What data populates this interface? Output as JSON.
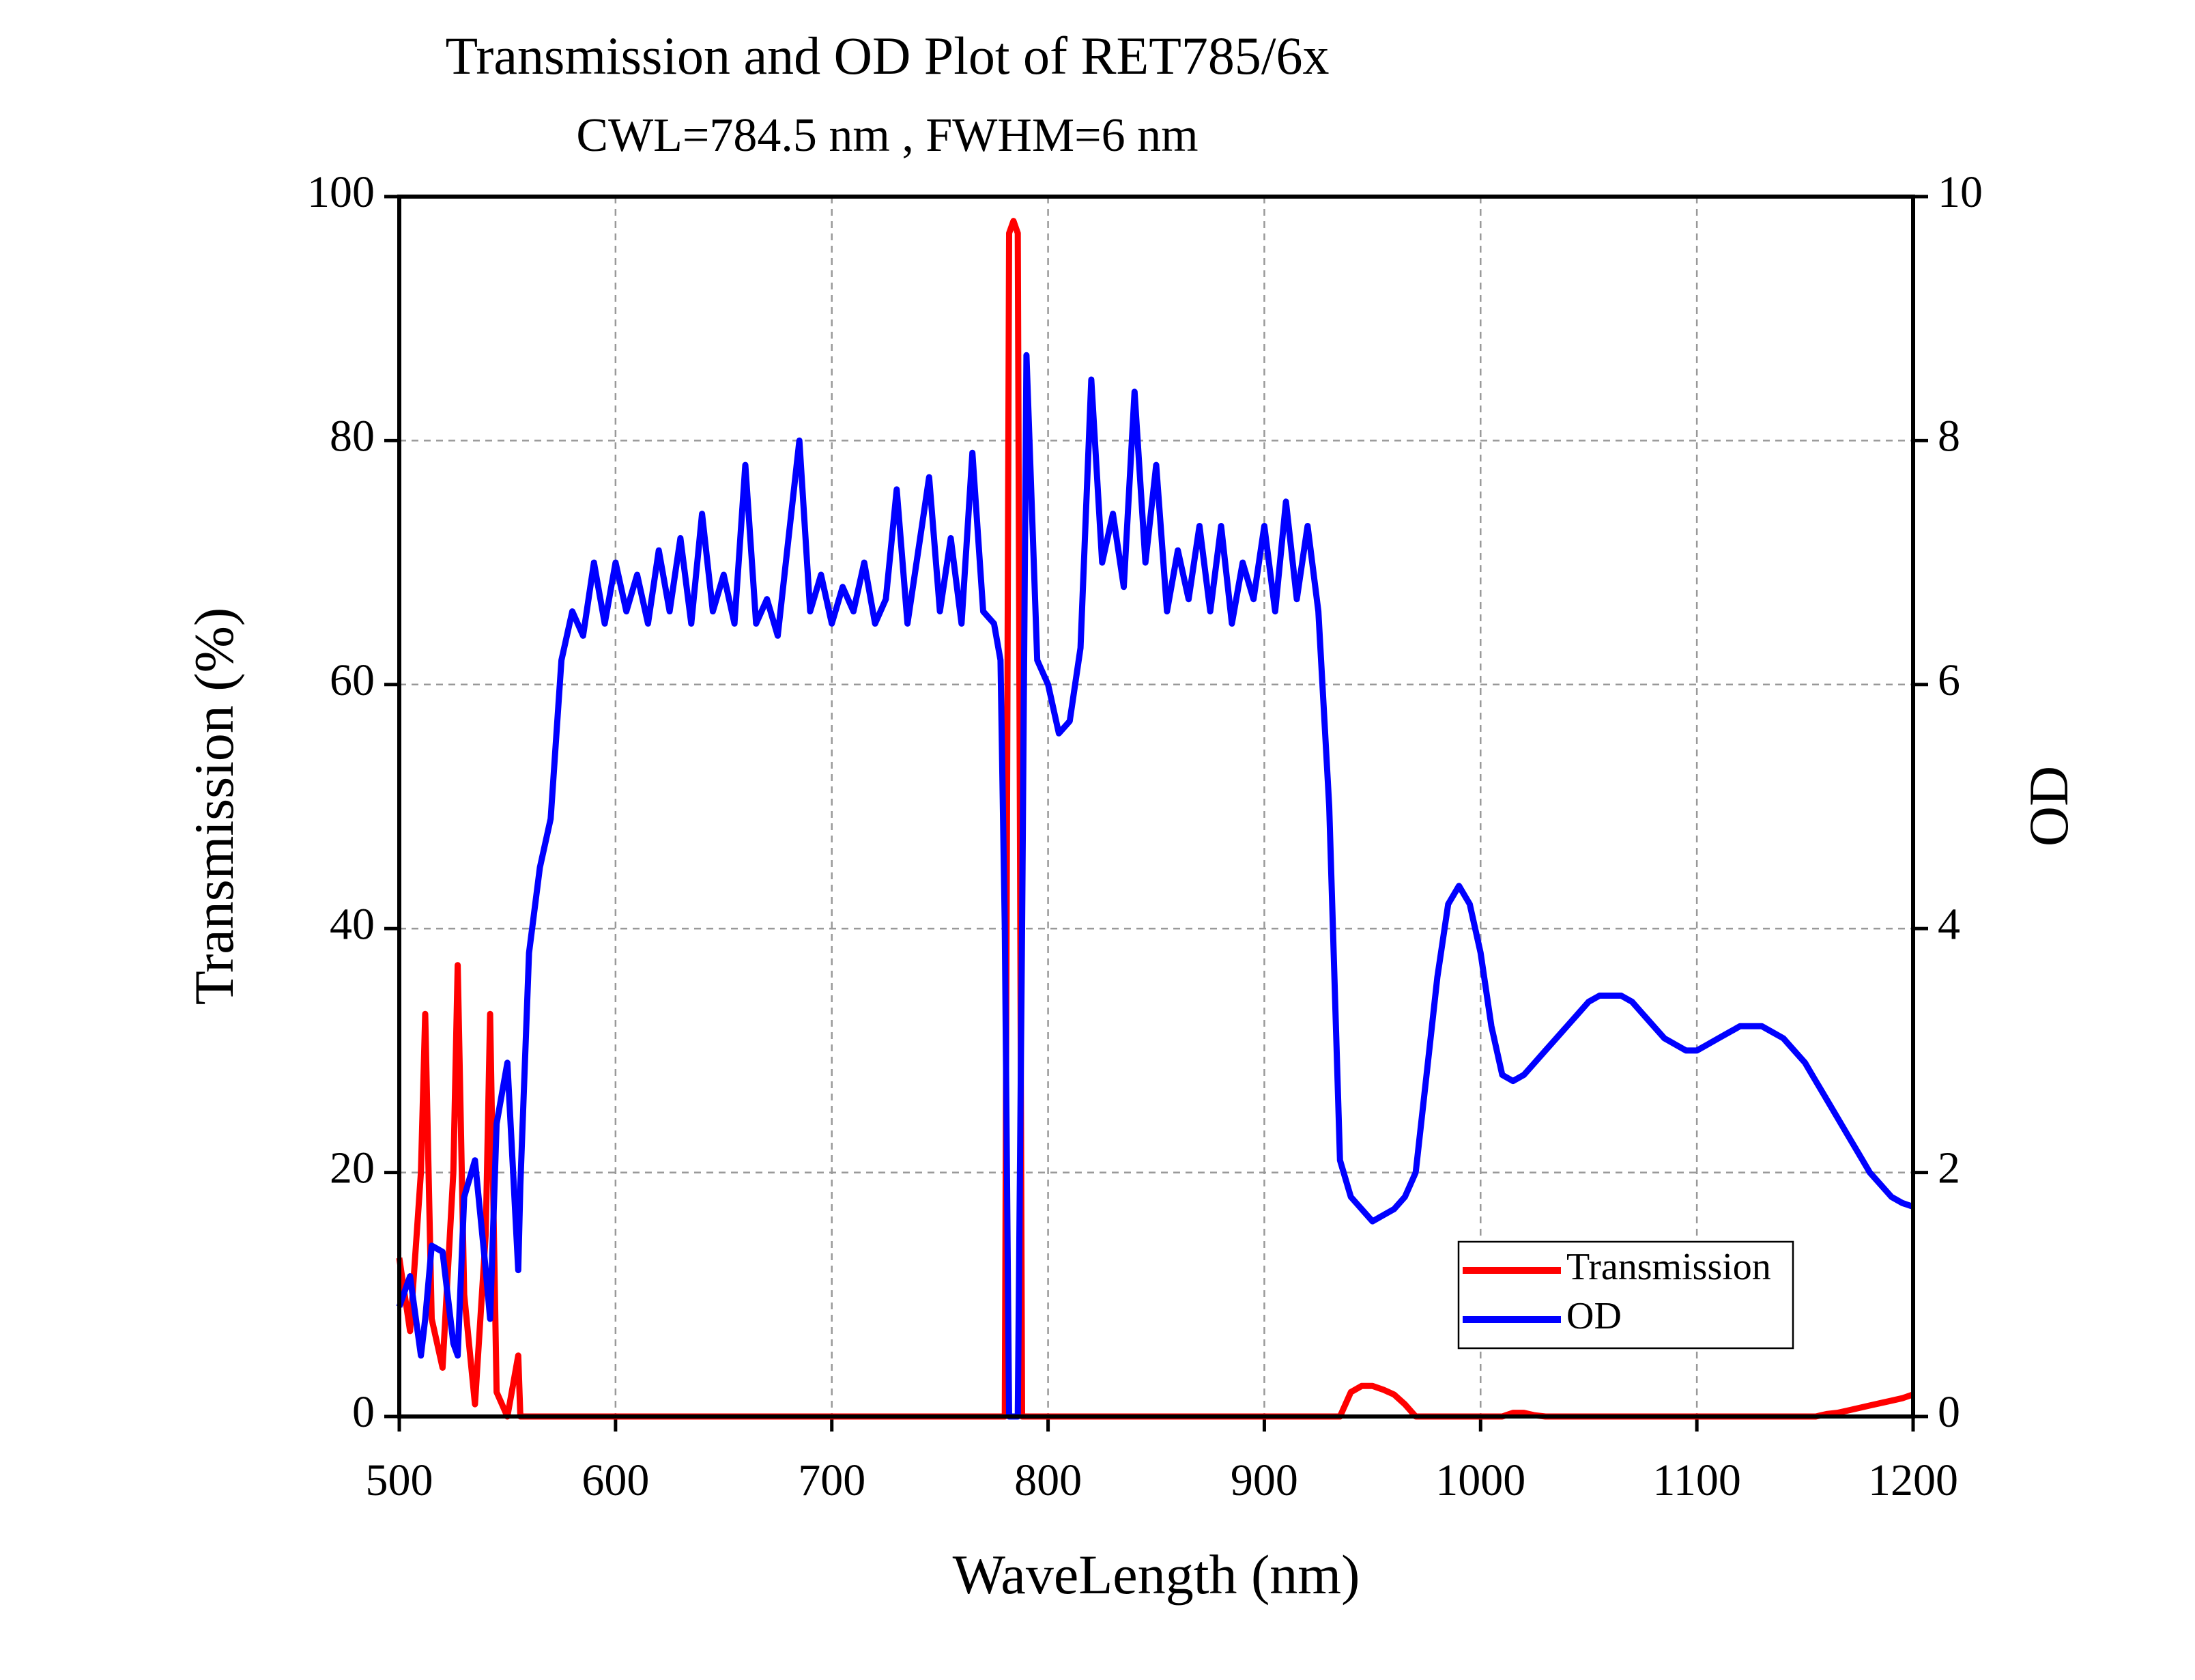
{
  "chart_data": {
    "type": "line",
    "title": "Transmission and OD Plot of RET785/6x",
    "subtitle": "CWL=784.5 nm , FWHM=6 nm",
    "xlabel": "WaveLength (nm)",
    "ylabel": "Transmission (%)",
    "y2label": "OD",
    "x": [
      500,
      505,
      510,
      512,
      515,
      520,
      525,
      527,
      530,
      535,
      540,
      542,
      545,
      550,
      555,
      556,
      560,
      565,
      570,
      575,
      580,
      585,
      590,
      595,
      600,
      605,
      610,
      615,
      620,
      625,
      630,
      635,
      640,
      645,
      650,
      655,
      660,
      665,
      670,
      675,
      680,
      685,
      690,
      695,
      700,
      705,
      710,
      715,
      720,
      725,
      730,
      735,
      740,
      745,
      750,
      755,
      760,
      765,
      770,
      775,
      778,
      780,
      782,
      784,
      786,
      788,
      790,
      795,
      800,
      805,
      810,
      815,
      820,
      825,
      830,
      835,
      840,
      845,
      850,
      855,
      860,
      865,
      870,
      875,
      880,
      885,
      890,
      895,
      900,
      905,
      910,
      915,
      920,
      925,
      930,
      935,
      940,
      945,
      950,
      955,
      960,
      965,
      970,
      975,
      980,
      985,
      990,
      995,
      1000,
      1005,
      1010,
      1015,
      1020,
      1025,
      1030,
      1035,
      1040,
      1045,
      1050,
      1055,
      1060,
      1065,
      1070,
      1075,
      1080,
      1085,
      1090,
      1095,
      1100,
      1105,
      1110,
      1115,
      1120,
      1125,
      1130,
      1135,
      1140,
      1145,
      1150,
      1155,
      1160,
      1165,
      1170,
      1175,
      1180,
      1185,
      1190,
      1195,
      1200
    ],
    "series": [
      {
        "name": "Transmission",
        "color": "#ff0000",
        "axis": "y",
        "values": [
          13,
          7,
          20,
          33,
          8,
          4,
          20,
          37,
          10,
          1,
          15,
          33,
          2,
          0,
          5,
          0,
          0,
          0,
          0,
          0,
          0,
          0,
          0,
          0,
          0,
          0,
          0,
          0,
          0,
          0,
          0,
          0,
          0,
          0,
          0,
          0,
          0,
          0,
          0,
          0,
          0,
          0,
          0,
          0,
          0,
          0,
          0,
          0,
          0,
          0,
          0,
          0,
          0,
          0,
          0,
          0,
          0,
          0,
          0,
          0,
          0,
          0,
          97,
          98,
          97,
          0,
          0,
          0,
          0,
          0,
          0,
          0,
          0,
          0,
          0,
          0,
          0,
          0,
          0,
          0,
          0,
          0,
          0,
          0,
          0,
          0,
          0,
          0,
          0,
          0,
          0,
          0,
          0,
          0,
          0,
          0,
          2,
          2.5,
          2.5,
          2.2,
          1.8,
          1,
          0,
          0,
          0,
          0,
          0,
          0,
          0,
          0,
          0,
          0.3,
          0.3,
          0.1,
          0,
          0,
          0,
          0,
          0,
          0,
          0,
          0,
          0,
          0,
          0,
          0,
          0,
          0,
          0,
          0,
          0,
          0,
          0,
          0,
          0,
          0,
          0,
          0,
          0,
          0,
          0.2,
          0.3,
          0.5,
          0.7,
          0.9,
          1.1,
          1.3,
          1.5,
          1.8
        ]
      },
      {
        "name": "OD",
        "color": "#0000ff",
        "axis": "y2",
        "values": [
          0.9,
          1.15,
          0.5,
          0.8,
          1.4,
          1.35,
          0.6,
          0.5,
          1.8,
          2.1,
          1.2,
          0.8,
          2.4,
          2.9,
          1.2,
          1.9,
          3.8,
          4.5,
          4.9,
          6.2,
          6.6,
          6.4,
          7.0,
          6.5,
          7.0,
          6.6,
          6.9,
          6.5,
          7.1,
          6.6,
          7.2,
          6.5,
          7.4,
          6.6,
          6.9,
          6.5,
          7.8,
          6.5,
          6.7,
          6.4,
          7.2,
          8.0,
          6.6,
          6.9,
          6.5,
          6.8,
          6.6,
          7.0,
          6.5,
          6.7,
          7.6,
          6.5,
          7.1,
          7.7,
          6.6,
          7.2,
          6.5,
          7.9,
          6.6,
          6.5,
          6.2,
          4,
          0,
          0,
          0,
          4,
          8.7,
          6.2,
          6.0,
          5.6,
          5.7,
          6.3,
          8.5,
          7.0,
          7.4,
          6.8,
          8.4,
          7.0,
          7.8,
          6.6,
          7.1,
          6.7,
          7.3,
          6.6,
          7.3,
          6.5,
          7.0,
          6.7,
          7.3,
          6.6,
          7.5,
          6.7,
          7.3,
          6.6,
          5.0,
          2.1,
          1.8,
          1.7,
          1.6,
          1.65,
          1.7,
          1.8,
          2.0,
          2.8,
          3.6,
          4.2,
          4.35,
          4.2,
          3.8,
          3.2,
          2.8,
          2.75,
          2.8,
          2.9,
          3.0,
          3.1,
          3.2,
          3.3,
          3.4,
          3.45,
          3.45,
          3.45,
          3.4,
          3.3,
          3.2,
          3.1,
          3.05,
          3.0,
          3.0,
          3.05,
          3.1,
          3.15,
          3.2,
          3.2,
          3.2,
          3.15,
          3.1,
          3.0,
          2.9,
          2.75,
          2.6,
          2.45,
          2.3,
          2.15,
          2.0,
          1.9,
          1.8,
          1.75,
          1.72
        ]
      }
    ],
    "xlim": [
      500,
      1200
    ],
    "xticks": [
      500,
      600,
      700,
      800,
      900,
      1000,
      1100,
      1200
    ],
    "ylim": [
      0,
      100
    ],
    "yticks": [
      0,
      20,
      40,
      60,
      80,
      100
    ],
    "y2lim": [
      0,
      10
    ],
    "y2ticks": [
      0,
      2,
      4,
      6,
      8,
      10
    ],
    "grid": true,
    "legend": "lower right"
  }
}
